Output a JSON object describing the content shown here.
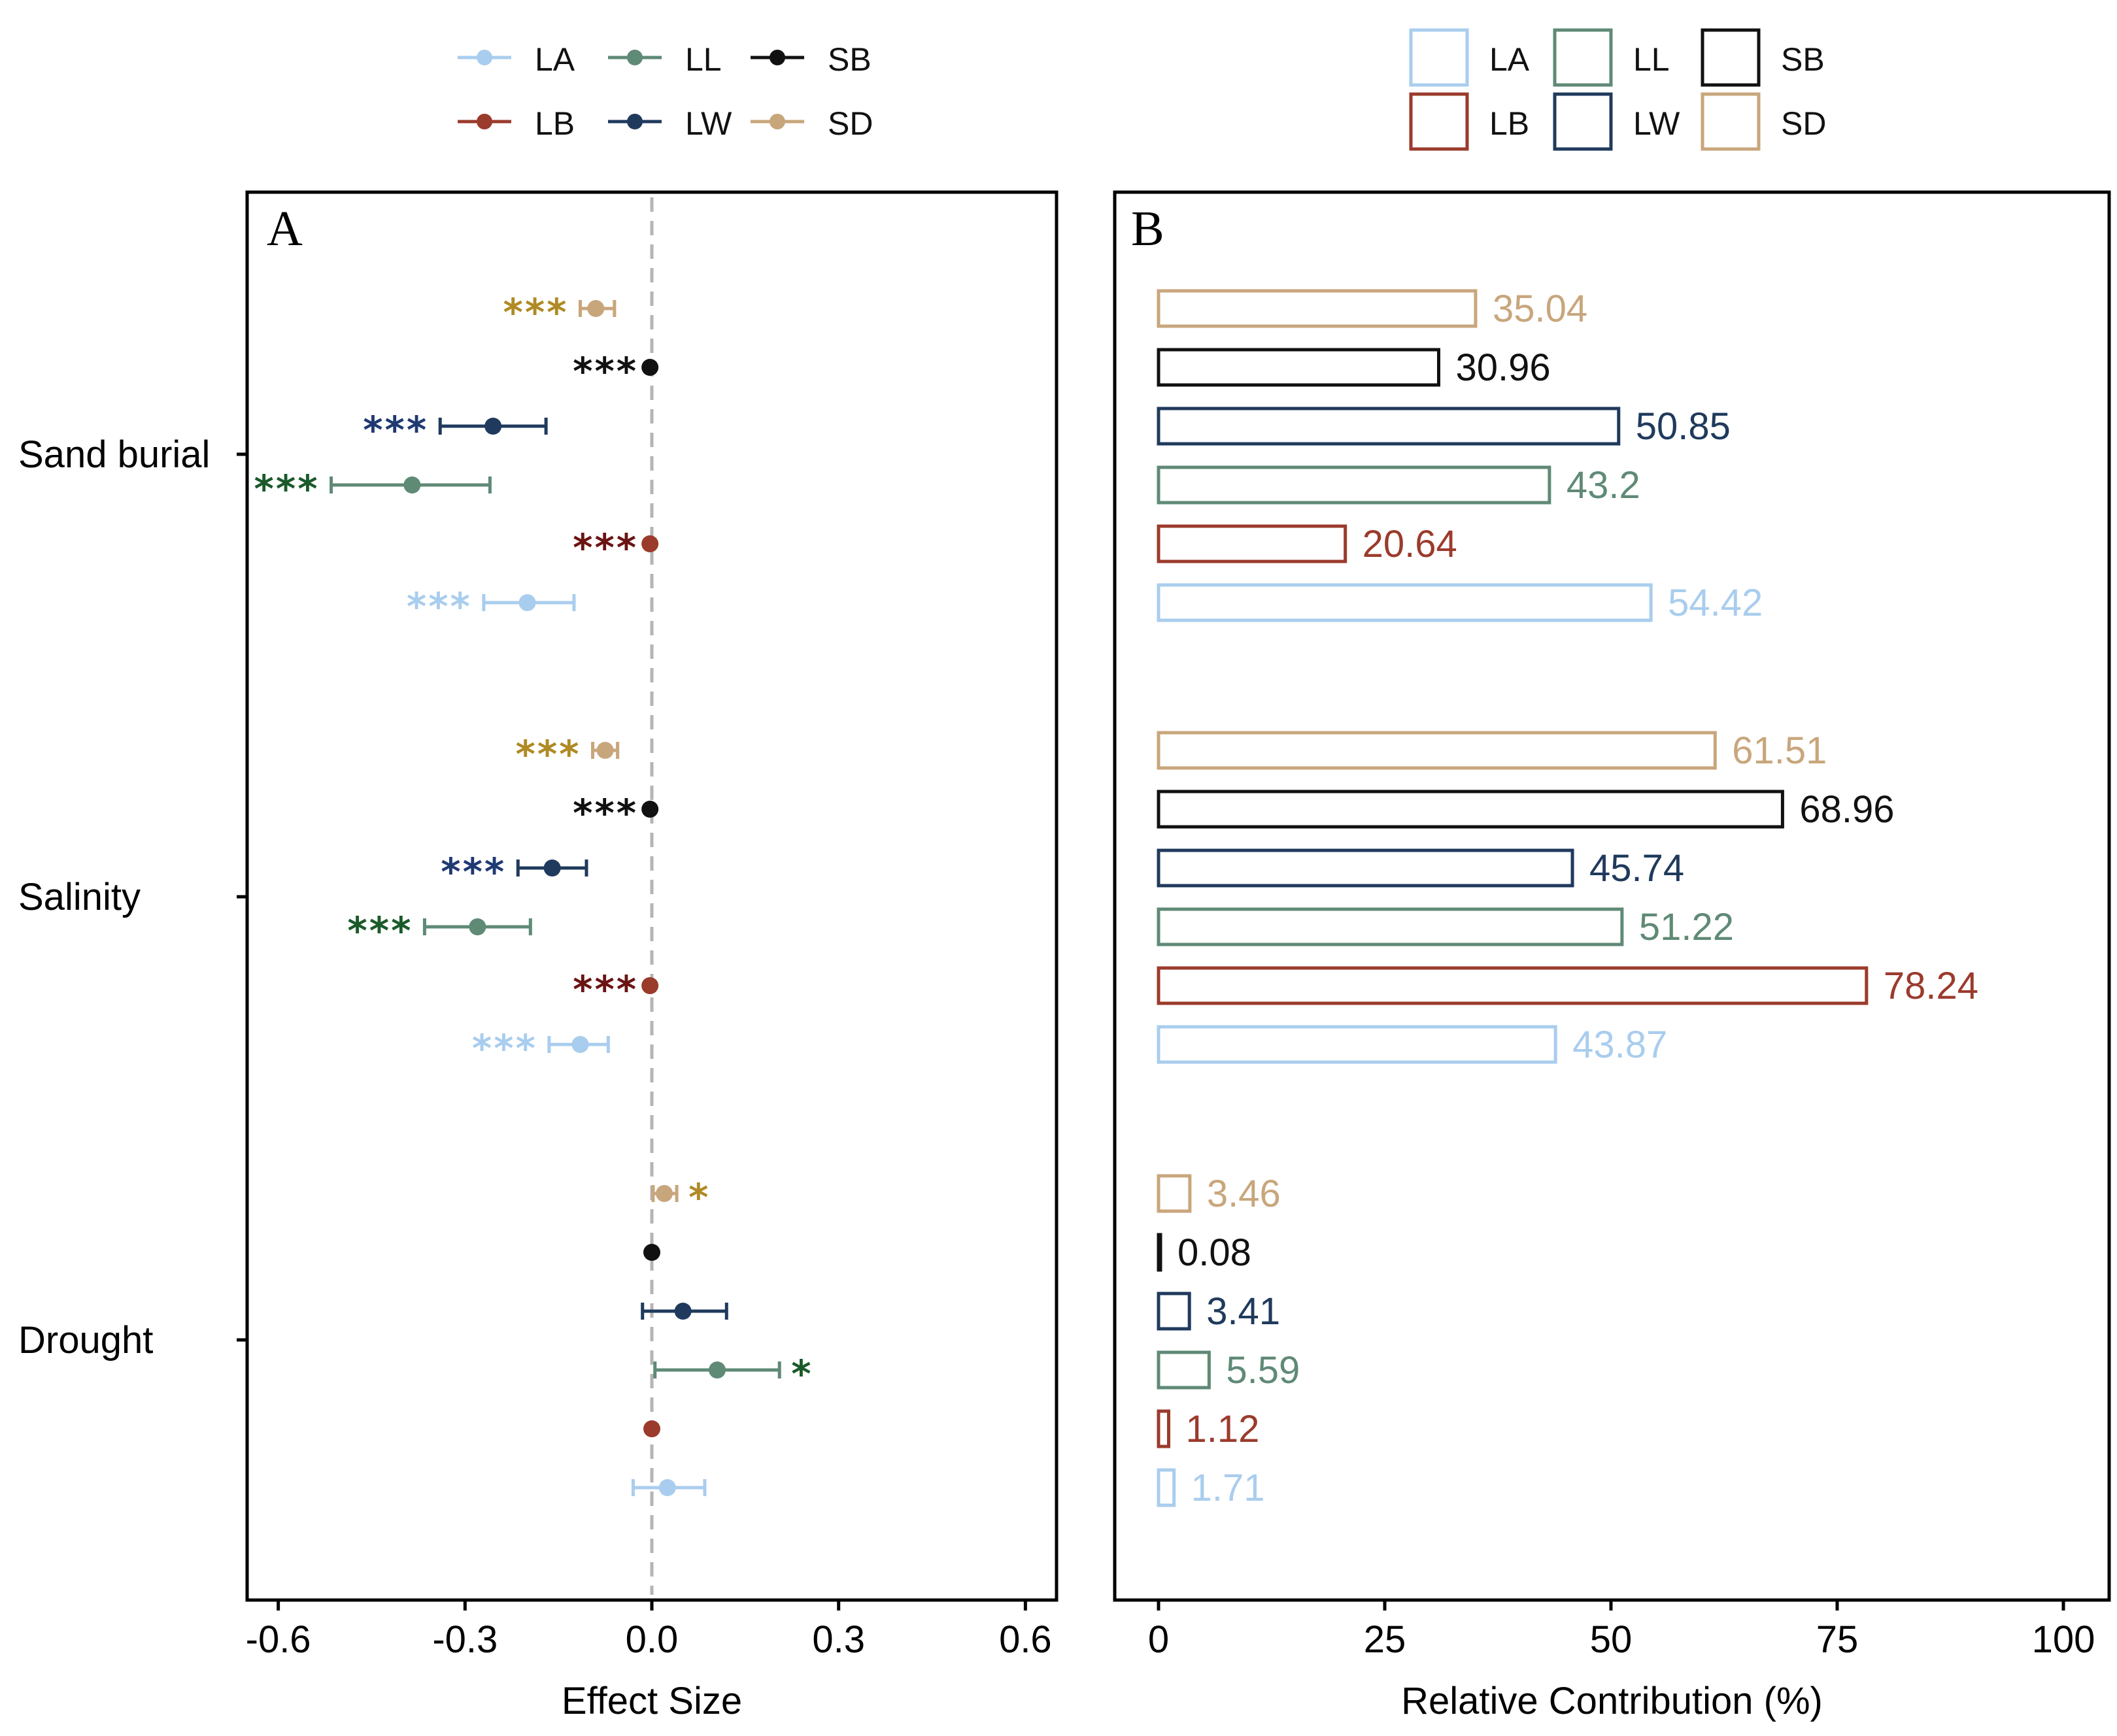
{
  "colors": {
    "LA": "#a9cdee",
    "LB": "#9b3b2c",
    "LL": "#5f8a76",
    "LW": "#1f3a5c",
    "SB": "#111111",
    "SD": "#c8a67c",
    "star_LA": "#a9cdee",
    "star_LB": "#6b1414",
    "star_LL": "#1a5a2a",
    "star_LW": "#1f3a73",
    "star_SB": "#111111",
    "star_SD": "#b08a25",
    "zero_line": "#b5b5b5",
    "frame": "#000000"
  },
  "chart_data": [
    {
      "type": "scatter",
      "panel_label": "A",
      "xlabel": "Effect Size",
      "ylabel": "",
      "xlim": [
        -0.65,
        0.65
      ],
      "xticks": [
        "-0.6",
        "-0.3",
        "0.0",
        "0.3",
        "0.6"
      ],
      "xtick_values": [
        -0.6,
        -0.3,
        0.0,
        0.3,
        0.6
      ],
      "categories": [
        "Sand burial",
        "Salinity",
        "Drought"
      ],
      "series_order": [
        "SD",
        "SB",
        "LW",
        "LL",
        "LB",
        "LA"
      ],
      "legend": {
        "placement": "top-center",
        "row1": [
          "LA",
          "LL",
          "SB"
        ],
        "row2": [
          "LB",
          "LW",
          "SD"
        ]
      },
      "points": [
        {
          "group": "Sand burial",
          "series": "SD",
          "value": -0.09,
          "lo": -0.115,
          "hi": -0.06,
          "sig": "***"
        },
        {
          "group": "Sand burial",
          "series": "SB",
          "value": -0.003,
          "lo": -0.003,
          "hi": -0.003,
          "sig": "***"
        },
        {
          "group": "Sand burial",
          "series": "LW",
          "value": -0.255,
          "lo": -0.34,
          "hi": -0.17,
          "sig": "***"
        },
        {
          "group": "Sand burial",
          "series": "LL",
          "value": -0.385,
          "lo": -0.515,
          "hi": -0.26,
          "sig": "***"
        },
        {
          "group": "Sand burial",
          "series": "LB",
          "value": -0.003,
          "lo": -0.003,
          "hi": -0.003,
          "sig": "***"
        },
        {
          "group": "Sand burial",
          "series": "LA",
          "value": -0.2,
          "lo": -0.27,
          "hi": -0.125,
          "sig": "***"
        },
        {
          "group": "Salinity",
          "series": "SD",
          "value": -0.075,
          "lo": -0.095,
          "hi": -0.055,
          "sig": "***"
        },
        {
          "group": "Salinity",
          "series": "SB",
          "value": -0.003,
          "lo": -0.003,
          "hi": -0.003,
          "sig": "***"
        },
        {
          "group": "Salinity",
          "series": "LW",
          "value": -0.16,
          "lo": -0.215,
          "hi": -0.105,
          "sig": "***"
        },
        {
          "group": "Salinity",
          "series": "LL",
          "value": -0.28,
          "lo": -0.365,
          "hi": -0.195,
          "sig": "***"
        },
        {
          "group": "Salinity",
          "series": "LB",
          "value": -0.003,
          "lo": -0.003,
          "hi": -0.003,
          "sig": "***"
        },
        {
          "group": "Salinity",
          "series": "LA",
          "value": -0.115,
          "lo": -0.165,
          "hi": -0.07,
          "sig": "***"
        },
        {
          "group": "Drought",
          "series": "SD",
          "value": 0.02,
          "lo": 0.002,
          "hi": 0.04,
          "sig": "*"
        },
        {
          "group": "Drought",
          "series": "SB",
          "value": 0.0,
          "lo": 0.0,
          "hi": 0.0,
          "sig": ""
        },
        {
          "group": "Drought",
          "series": "LW",
          "value": 0.05,
          "lo": -0.015,
          "hi": 0.12,
          "sig": ""
        },
        {
          "group": "Drought",
          "series": "LL",
          "value": 0.105,
          "lo": 0.005,
          "hi": 0.205,
          "sig": "*"
        },
        {
          "group": "Drought",
          "series": "LB",
          "value": 0.0,
          "lo": 0.0,
          "hi": 0.0,
          "sig": ""
        },
        {
          "group": "Drought",
          "series": "LA",
          "value": 0.025,
          "lo": -0.03,
          "hi": 0.085,
          "sig": ""
        }
      ]
    },
    {
      "type": "bar",
      "orientation": "horizontal",
      "panel_label": "B",
      "xlabel": "Relative Contribution (%)",
      "ylabel": "",
      "xlim": [
        -5,
        105
      ],
      "xticks": [
        "0",
        "25",
        "50",
        "75",
        "100"
      ],
      "xtick_values": [
        0,
        25,
        50,
        75,
        100
      ],
      "categories": [
        "Sand burial",
        "Salinity",
        "Drought"
      ],
      "series_order": [
        "SD",
        "SB",
        "LW",
        "LL",
        "LB",
        "LA"
      ],
      "legend": {
        "placement": "top-center",
        "row1": [
          "LA",
          "LL",
          "SB"
        ],
        "row2": [
          "LB",
          "LW",
          "SD"
        ]
      },
      "bars": [
        {
          "group": "Sand burial",
          "series": "SD",
          "value": 35.04,
          "label": "35.04"
        },
        {
          "group": "Sand burial",
          "series": "SB",
          "value": 30.96,
          "label": "30.96"
        },
        {
          "group": "Sand burial",
          "series": "LW",
          "value": 50.85,
          "label": "50.85"
        },
        {
          "group": "Sand burial",
          "series": "LL",
          "value": 43.2,
          "label": "43.2"
        },
        {
          "group": "Sand burial",
          "series": "LB",
          "value": 20.64,
          "label": "20.64"
        },
        {
          "group": "Sand burial",
          "series": "LA",
          "value": 54.42,
          "label": "54.42"
        },
        {
          "group": "Salinity",
          "series": "SD",
          "value": 61.51,
          "label": "61.51"
        },
        {
          "group": "Salinity",
          "series": "SB",
          "value": 68.96,
          "label": "68.96"
        },
        {
          "group": "Salinity",
          "series": "LW",
          "value": 45.74,
          "label": "45.74"
        },
        {
          "group": "Salinity",
          "series": "LL",
          "value": 51.22,
          "label": "51.22"
        },
        {
          "group": "Salinity",
          "series": "LB",
          "value": 78.24,
          "label": "78.24"
        },
        {
          "group": "Salinity",
          "series": "LA",
          "value": 43.87,
          "label": "43.87"
        },
        {
          "group": "Drought",
          "series": "SD",
          "value": 3.46,
          "label": "3.46"
        },
        {
          "group": "Drought",
          "series": "SB",
          "value": 0.08,
          "label": "0.08"
        },
        {
          "group": "Drought",
          "series": "LW",
          "value": 3.41,
          "label": "3.41"
        },
        {
          "group": "Drought",
          "series": "LL",
          "value": 5.59,
          "label": "5.59"
        },
        {
          "group": "Drought",
          "series": "LB",
          "value": 1.12,
          "label": "1.12"
        },
        {
          "group": "Drought",
          "series": "LA",
          "value": 1.71,
          "label": "1.71"
        }
      ]
    }
  ]
}
